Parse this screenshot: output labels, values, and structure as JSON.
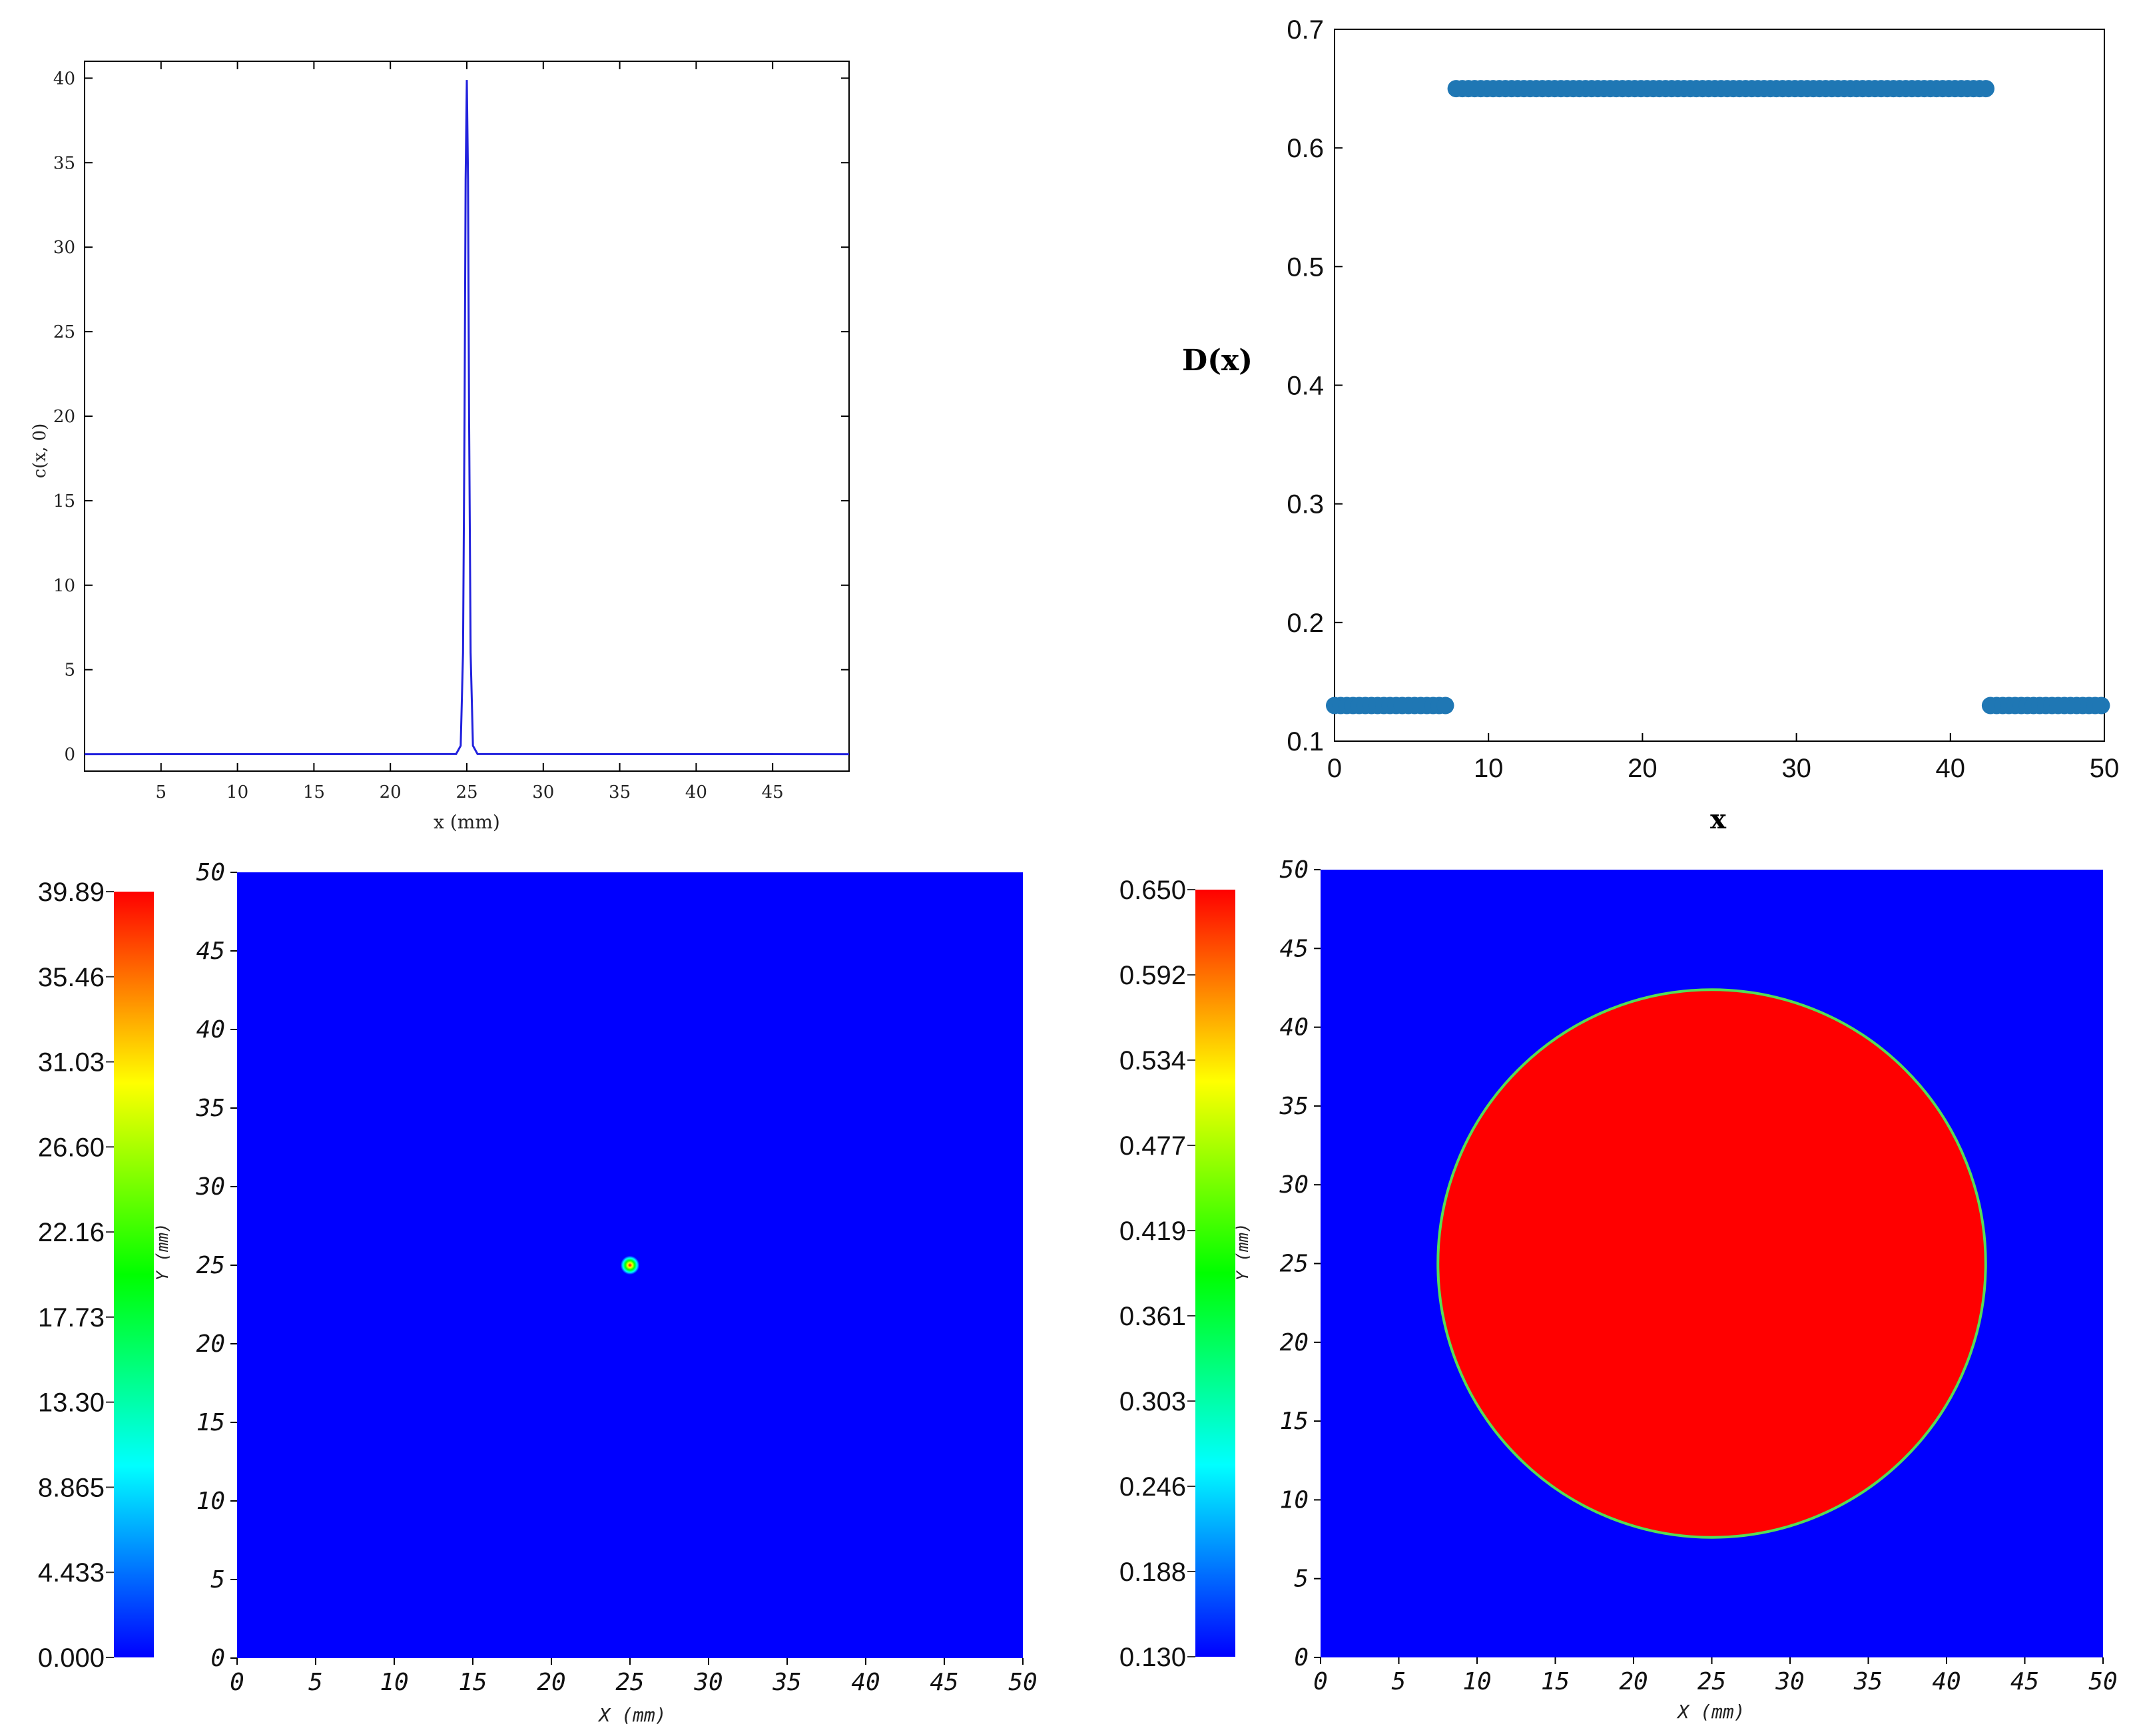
{
  "chart_data": [
    {
      "type": "line",
      "xlabel": "x (mm)",
      "ylabel": "c(x, 0)",
      "xlim": [
        0,
        50
      ],
      "ylim": [
        -1,
        41
      ],
      "xticks": [
        5,
        10,
        15,
        20,
        25,
        30,
        35,
        40,
        45
      ],
      "yticks": [
        0,
        5,
        10,
        15,
        20,
        25,
        30,
        35,
        40
      ],
      "series": [
        {
          "color": "#2222dd",
          "x": [
            0,
            24.3,
            24.6,
            24.75,
            24.85,
            24.92,
            25.0,
            25.08,
            25.15,
            25.25,
            25.4,
            25.7,
            50
          ],
          "y": [
            0,
            0.01,
            0.5,
            6.0,
            20.0,
            34.0,
            39.89,
            34.0,
            20.0,
            6.0,
            0.5,
            0.01,
            0
          ]
        }
      ],
      "grid": false
    },
    {
      "type": "scatter",
      "xlabel": "x",
      "ylabel": "D(x)",
      "xlim": [
        0,
        50
      ],
      "ylim": [
        0.1,
        0.7
      ],
      "xticks": [
        0,
        10,
        20,
        30,
        40,
        50
      ],
      "yticks": [
        "0.1",
        "0.2",
        "0.3",
        "0.4",
        "0.5",
        "0.6",
        "0.7"
      ],
      "segments": [
        {
          "x_start": 0,
          "x_end": 7.5,
          "y": 0.13
        },
        {
          "x_start": 7.9,
          "x_end": 42.3,
          "y": 0.65
        },
        {
          "x_start": 42.6,
          "x_end": 50,
          "y": 0.13
        }
      ],
      "point_spacing": 0.4,
      "color": "#1f77b4",
      "grid": false
    },
    {
      "type": "heatmap",
      "xlabel": "X (mm)",
      "ylabel": "Y (mm)",
      "xlim": [
        0,
        50
      ],
      "ylim": [
        0,
        50
      ],
      "ticks": [
        "0",
        "5",
        "10",
        "15",
        "20",
        "25",
        "30",
        "35",
        "40",
        "45",
        "50"
      ],
      "colorbar_ticks": [
        "0.000",
        "4.433",
        "8.865",
        "13.30",
        "17.73",
        "22.16",
        "26.60",
        "31.03",
        "35.46",
        "39.89"
      ],
      "colorbar_range": [
        0,
        39.89
      ],
      "background_value": 0,
      "feature": {
        "shape": "gaussian-spot",
        "center": [
          25,
          25
        ],
        "peak": 39.89,
        "radius": 0.6
      }
    },
    {
      "type": "heatmap",
      "xlabel": "X (mm)",
      "ylabel": "Y (mm)",
      "xlim": [
        0,
        50
      ],
      "ylim": [
        0,
        50
      ],
      "ticks": [
        "0",
        "5",
        "10",
        "15",
        "20",
        "25",
        "30",
        "35",
        "40",
        "45",
        "50"
      ],
      "colorbar_ticks": [
        "0.130",
        "0.188",
        "0.246",
        "0.303",
        "0.361",
        "0.419",
        "0.477",
        "0.534",
        "0.592",
        "0.650"
      ],
      "colorbar_range": [
        0.13,
        0.65
      ],
      "background_value": 0.13,
      "feature": {
        "shape": "disk",
        "center": [
          25,
          25
        ],
        "radius": 17.5,
        "value": 0.65
      }
    }
  ],
  "colors": {
    "map_background": "#0000ff",
    "map_high": "#ff0000",
    "colorbar_stops": [
      "#0000ff",
      "#00ffff",
      "#00ff00",
      "#ffff00",
      "#ff0000"
    ]
  }
}
